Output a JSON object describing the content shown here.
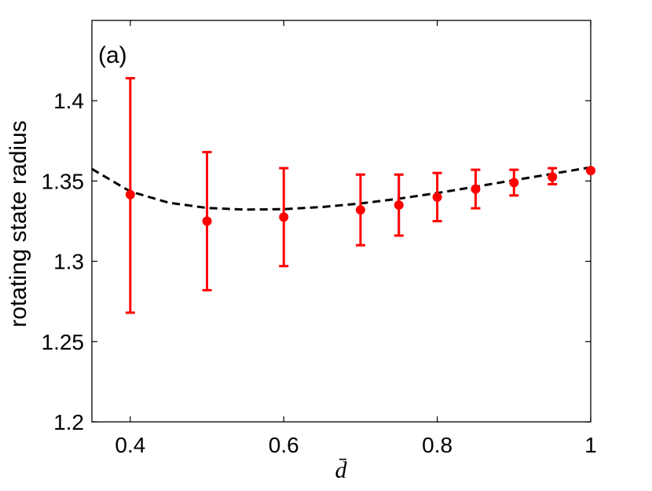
{
  "chart_data": {
    "type": "scatter",
    "panel_label": "(a)",
    "xlabel": "d̄",
    "ylabel": "rotating state radius",
    "xlim": [
      0.35,
      1.0
    ],
    "ylim": [
      1.2,
      1.45
    ],
    "xticks": [
      0.4,
      0.6,
      0.8,
      1.0
    ],
    "xtick_labels": [
      "0.4",
      "0.6",
      "0.8",
      "1"
    ],
    "yticks": [
      1.2,
      1.25,
      1.3,
      1.35,
      1.4
    ],
    "ytick_labels": [
      "1.2",
      "1.25",
      "1.3",
      "1.35",
      "1.4"
    ],
    "grid": false,
    "series": [
      {
        "type": "scatter_errorbar",
        "color": "#ff0000",
        "points": [
          {
            "x": 0.4,
            "y": 1.3415,
            "err_low": 1.268,
            "err_high": 1.414
          },
          {
            "x": 0.5,
            "y": 1.325,
            "err_low": 1.282,
            "err_high": 1.368
          },
          {
            "x": 0.6,
            "y": 1.3275,
            "err_low": 1.297,
            "err_high": 1.358
          },
          {
            "x": 0.7,
            "y": 1.332,
            "err_low": 1.31,
            "err_high": 1.354
          },
          {
            "x": 0.75,
            "y": 1.335,
            "err_low": 1.316,
            "err_high": 1.354
          },
          {
            "x": 0.8,
            "y": 1.34,
            "err_low": 1.325,
            "err_high": 1.355
          },
          {
            "x": 0.85,
            "y": 1.345,
            "err_low": 1.333,
            "err_high": 1.357
          },
          {
            "x": 0.9,
            "y": 1.349,
            "err_low": 1.341,
            "err_high": 1.357
          },
          {
            "x": 0.95,
            "y": 1.3525,
            "err_low": 1.348,
            "err_high": 1.358
          },
          {
            "x": 1.0,
            "y": 1.3565,
            "err_low": 1.3565,
            "err_high": 1.3565
          }
        ]
      },
      {
        "type": "line",
        "style": "dashed",
        "color": "#000000",
        "x": [
          0.35,
          0.4,
          0.45,
          0.5,
          0.55,
          0.6,
          0.65,
          0.7,
          0.75,
          0.8,
          0.85,
          0.9,
          0.95,
          1.0
        ],
        "y": [
          1.3575,
          1.3435,
          1.3365,
          1.3332,
          1.3322,
          1.3325,
          1.3338,
          1.336,
          1.339,
          1.3425,
          1.3465,
          1.3505,
          1.3545,
          1.3585
        ]
      }
    ]
  }
}
